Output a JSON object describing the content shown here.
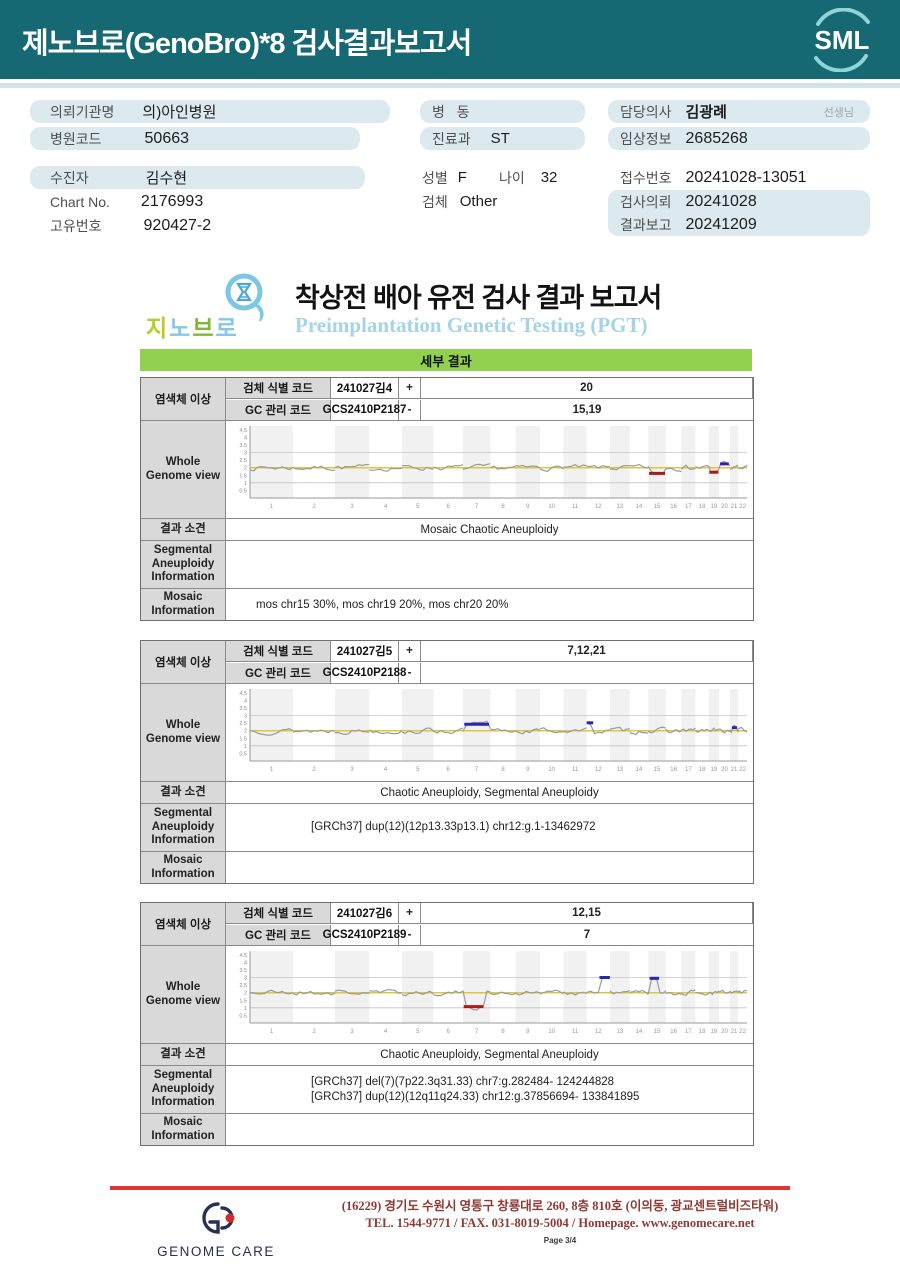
{
  "header": {
    "title": "제노브로(GenoBro)*8 검사결과보고서",
    "logo": "SML"
  },
  "colors": {
    "header_teal": "#166973",
    "section_green": "#92d050",
    "highlight_blue": "#dce9ef",
    "footer_red": "#e23434",
    "gain_blue": "#2626b8",
    "loss_red": "#b01717",
    "baseline_yellow": "#ddc83d"
  },
  "info": {
    "org_label": "의뢰기관명",
    "org_value": "의)아인병원",
    "hospital_code_label": "병원코드",
    "hospital_code_value": "50663",
    "patient_label": "수진자",
    "patient_value": "김수현",
    "chart_no_label": "Chart No.",
    "chart_no_value": "2176993",
    "unique_no_label": "고유번호",
    "unique_no_value": "920427-2",
    "ward_label": "병 동",
    "ward_value": "",
    "dept_label": "진료과",
    "dept_value": "ST",
    "sex_label": "성별",
    "sex_value": "F",
    "age_label": "나이",
    "age_value": "32",
    "specimen_label": "검체",
    "specimen_value": "Other",
    "doctor_label": "담당의사",
    "doctor_value": "김광례",
    "doctor_suffix": "선생님",
    "clinical_label": "임상정보",
    "clinical_value": "2685268",
    "receipt_label": "접수번호",
    "receipt_value": "20241028-13051",
    "request_label": "검사의뢰",
    "request_value": "20241028",
    "report_label": "결과보고",
    "report_value": "20241209"
  },
  "pgt": {
    "logo_ch1": "지",
    "logo_ch2": "노",
    "logo_ch3": "브",
    "logo_ch4": "로",
    "title_ko": "착상전 배아 유전 검사 결과 보고서",
    "title_en": "Preimplantation Genetic Testing (PGT)",
    "section_title": "세부 결과"
  },
  "labels": {
    "sample_code": "검체 식별 코드",
    "gc_code": "GC 관리 코드",
    "chromosome_abnormality": "염색체 이상",
    "plus": "+",
    "minus": "-",
    "wgv": "Whole Genome view",
    "result": "결과 소견",
    "segmental": "Segmental Aneuploidy Information",
    "mosaic": "Mosaic Information"
  },
  "blocks": [
    {
      "sample_code": "241027김4",
      "gc_code": "GCS2410P2187",
      "gain": "20",
      "loss": "15,19",
      "result": "Mosaic Chaotic Aneuploidy",
      "segmental": [],
      "mosaic": "mos chr15 30%, mos chr19 20%, mos chr20 20%"
    },
    {
      "sample_code": "241027김5",
      "gc_code": "GCS2410P2188",
      "gain": "7,12,21",
      "loss": "",
      "result": "Chaotic Aneuploidy, Segmental Aneuploidy",
      "segmental": [
        "[GRCh37] dup(12)(12p13.33p13.1) chr12:g.1-13462972"
      ],
      "mosaic": ""
    },
    {
      "sample_code": "241027김6",
      "gc_code": "GCS2410P2189",
      "gain": "12,15",
      "loss": "7",
      "result": "Chaotic Aneuploidy, Segmental Aneuploidy",
      "segmental": [
        "[GRCh37] del(7)(7p22.3q31.33) chr7:g.282484- 124244828",
        "[GRCh37] dup(12)(12q11q24.33) chr12:g.37856694- 133841895"
      ],
      "mosaic": ""
    }
  ],
  "chart_data": [
    {
      "type": "line",
      "title": "Whole Genome view",
      "categories": [
        "1",
        "2",
        "3",
        "4",
        "5",
        "6",
        "7",
        "8",
        "9",
        "10",
        "11",
        "12",
        "13",
        "14",
        "15",
        "16",
        "17",
        "18",
        "19",
        "20",
        "21",
        "22"
      ],
      "ylim": [
        0,
        4.75
      ],
      "yticks": [
        0.5,
        1,
        1.5,
        2,
        2.5,
        3,
        3.5,
        4,
        4.5
      ],
      "gridlines": [
        1,
        3
      ],
      "baseline": 2,
      "baseline_color": "#ddc83d",
      "line_color": "#9a9a9a",
      "gain_color": "#2626b8",
      "loss_color": "#b01717",
      "seed": 7,
      "aberrations": [
        {
          "chr": 15,
          "type": "loss",
          "level": 1.62,
          "from": 0.05,
          "to": 0.95
        },
        {
          "chr": 19,
          "type": "loss",
          "level": 1.7,
          "from": 0.05,
          "to": 0.95
        },
        {
          "chr": 20,
          "type": "gain",
          "level": 2.25,
          "from": 0.1,
          "to": 0.9
        }
      ]
    },
    {
      "type": "line",
      "title": "Whole Genome view",
      "categories": [
        "1",
        "2",
        "3",
        "4",
        "5",
        "6",
        "7",
        "8",
        "9",
        "10",
        "11",
        "12",
        "13",
        "14",
        "15",
        "16",
        "17",
        "18",
        "19",
        "20",
        "21",
        "22"
      ],
      "ylim": [
        0,
        4.75
      ],
      "yticks": [
        0.5,
        1,
        1.5,
        2,
        2.5,
        3,
        3.5,
        4,
        4.5
      ],
      "gridlines": [
        1,
        3
      ],
      "baseline": 2,
      "baseline_color": "#ddc83d",
      "line_color": "#9a9a9a",
      "gain_color": "#2626b8",
      "loss_color": "#b01717",
      "seed": 13,
      "aberrations": [
        {
          "chr": 7,
          "type": "gain",
          "level": 2.42,
          "from": 0.05,
          "to": 0.95
        },
        {
          "chr": 12,
          "type": "gain",
          "level": 2.52,
          "from": 0.0,
          "to": 0.28
        },
        {
          "chr": 21,
          "type": "gain",
          "level": 2.2,
          "from": 0.25,
          "to": 0.85
        }
      ]
    },
    {
      "type": "line",
      "title": "Whole Genome view",
      "categories": [
        "1",
        "2",
        "3",
        "4",
        "5",
        "6",
        "7",
        "8",
        "9",
        "10",
        "11",
        "12",
        "13",
        "14",
        "15",
        "16",
        "17",
        "18",
        "19",
        "20",
        "21",
        "22"
      ],
      "ylim": [
        0,
        4.75
      ],
      "yticks": [
        0.5,
        1,
        1.5,
        2,
        2.5,
        3,
        3.5,
        4,
        4.5
      ],
      "gridlines": [
        1,
        3
      ],
      "baseline": 2,
      "baseline_color": "#ddc83d",
      "line_color": "#9a9a9a",
      "gain_color": "#2626b8",
      "loss_color": "#b01717",
      "seed": 21,
      "aberrations": [
        {
          "chr": 7,
          "type": "loss",
          "level": 1.08,
          "from": 0.03,
          "to": 0.75
        },
        {
          "chr": 12,
          "type": "gain",
          "level": 3.0,
          "from": 0.55,
          "to": 1.0
        },
        {
          "chr": 15,
          "type": "gain",
          "level": 2.95,
          "from": 0.08,
          "to": 0.62
        }
      ]
    }
  ],
  "footer": {
    "logo_text": "GENOME CARE",
    "address": "(16229) 경기도 수원시 영통구 창룡대로 260, 8층 810호 (이의동, 광교센트럴비즈타워)",
    "contact": "TEL. 1544-9771 / FAX. 031-8019-5004 / Homepage. www.genomecare.net",
    "page": "Page 3/4"
  }
}
